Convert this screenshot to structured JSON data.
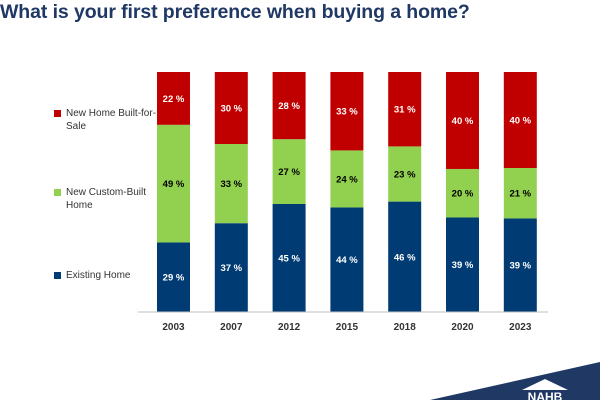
{
  "title": "What is your first preference when buying a home?",
  "logo": {
    "text": "NAHB"
  },
  "chart_data": {
    "type": "bar",
    "stacked": true,
    "normalized": true,
    "categories": [
      "2003",
      "2007",
      "2012",
      "2015",
      "2018",
      "2020",
      "2023"
    ],
    "series": [
      {
        "name": "Existing Home",
        "color": "#003b73",
        "values": [
          29,
          37,
          45,
          44,
          46,
          39,
          39
        ]
      },
      {
        "name": "New Custom-Built Home",
        "color": "#92d050",
        "values": [
          49,
          33,
          27,
          24,
          23,
          20,
          21
        ]
      },
      {
        "name": "New Home Built-for-Sale",
        "color": "#c00000",
        "values": [
          22,
          30,
          28,
          33,
          31,
          40,
          40
        ]
      }
    ],
    "value_suffix": " %",
    "ylim": [
      0,
      100
    ],
    "grid": false,
    "legend_position": "left"
  }
}
